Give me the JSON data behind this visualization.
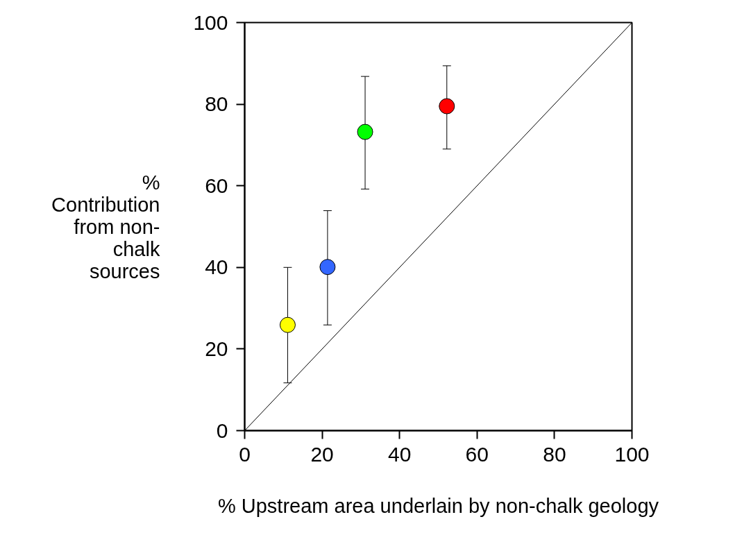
{
  "chart_data": {
    "type": "scatter",
    "xlabel": "% Upstream area underlain by non-chalk geology",
    "ylabel": "%\nContribution\nfrom non-\nchalk\nsources",
    "xlim": [
      0,
      100
    ],
    "ylim": [
      0,
      100
    ],
    "xticks": [
      0,
      20,
      40,
      60,
      80,
      100
    ],
    "yticks": [
      0,
      20,
      40,
      60,
      80,
      100
    ],
    "grid": false,
    "series": [
      {
        "type": "line",
        "color": "#000000",
        "x": [
          0,
          100
        ],
        "values": [
          0,
          100
        ],
        "line_style": "solid"
      },
      {
        "marker": "circle",
        "x": [
          11.1,
          21.4,
          31.1,
          52.2
        ],
        "values": [
          25.9,
          40.1,
          73.2,
          79.5
        ],
        "colors": [
          "#ffff00",
          "#3366ff",
          "#00ff00",
          "#ff0000"
        ],
        "errors": [
          [
            11.7,
            40.0
          ],
          [
            25.9,
            53.9
          ],
          [
            59.2,
            86.8
          ],
          [
            69.0,
            89.4
          ]
        ]
      }
    ]
  }
}
